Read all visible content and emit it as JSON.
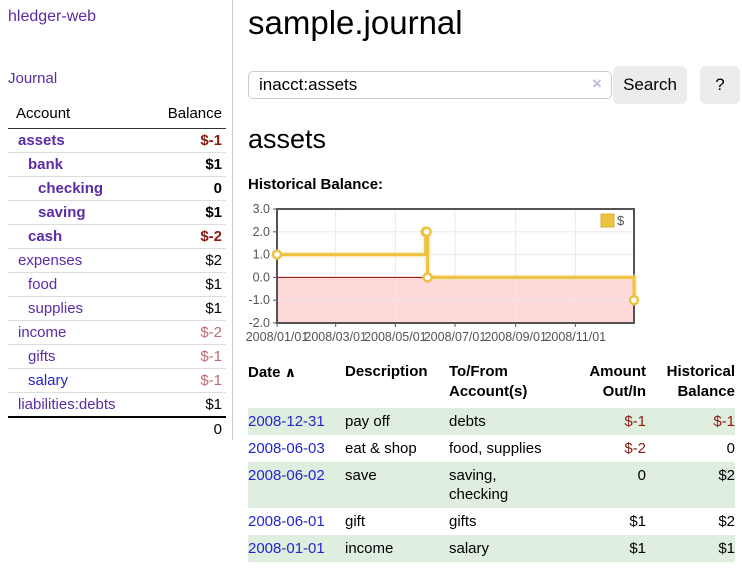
{
  "app": {
    "brand": "hledger-web",
    "nav_journal": "Journal"
  },
  "sidebar": {
    "accounts_header": {
      "account": "Account",
      "balance": "Balance"
    },
    "accounts": [
      {
        "name": "assets",
        "balance": "$-1",
        "indent": 0,
        "bold": true,
        "neg": "strong"
      },
      {
        "name": "bank",
        "balance": "$1",
        "indent": 1,
        "bold": true,
        "neg": "none"
      },
      {
        "name": "checking",
        "balance": "0",
        "indent": 2,
        "bold": true,
        "neg": "none"
      },
      {
        "name": "saving",
        "balance": "$1",
        "indent": 2,
        "bold": true,
        "neg": "none"
      },
      {
        "name": "cash",
        "balance": "$-2",
        "indent": 1,
        "bold": true,
        "neg": "strong"
      },
      {
        "name": "expenses",
        "balance": "$2",
        "indent": 0,
        "bold": false,
        "neg": "none"
      },
      {
        "name": "food",
        "balance": "$1",
        "indent": 1,
        "bold": false,
        "neg": "none"
      },
      {
        "name": "supplies",
        "balance": "$1",
        "indent": 1,
        "bold": false,
        "neg": "none"
      },
      {
        "name": "income",
        "balance": "$-2",
        "indent": 0,
        "bold": false,
        "neg": "soft"
      },
      {
        "name": "gifts",
        "balance": "$-1",
        "indent": 1,
        "bold": false,
        "neg": "soft"
      },
      {
        "name": "salary",
        "balance": "$-1",
        "indent": 1,
        "bold": false,
        "neg": "soft",
        "link": "blue"
      },
      {
        "name": "liabilities:debts",
        "balance": "$1",
        "indent": 0,
        "bold": false,
        "neg": "none"
      }
    ],
    "total": "0"
  },
  "header": {
    "title": "sample.journal"
  },
  "search": {
    "query": "inacct:assets",
    "clear_icon": "×",
    "button": "Search",
    "help_button": "?"
  },
  "account_page": {
    "heading": "assets",
    "chart_title": "Historical Balance:"
  },
  "chart_data": {
    "type": "line",
    "step": true,
    "title": "Historical Balance:",
    "x": [
      "2008-01-01",
      "2008-06-01",
      "2008-06-02",
      "2008-06-03",
      "2008-12-31"
    ],
    "series": [
      {
        "name": "$",
        "color": "#edc240",
        "values": [
          1,
          2,
          2,
          0,
          -1
        ]
      }
    ],
    "xlim": [
      "2008-01-01",
      "2008-12-31"
    ],
    "ylim": [
      -2,
      3
    ],
    "yticks": [
      3,
      2,
      1,
      0,
      -1,
      -2
    ],
    "xticks": [
      {
        "date": "2008-01-01",
        "label": "2008/01/01"
      },
      {
        "date": "2008-03-01",
        "label": "2008/03/01"
      },
      {
        "date": "2008-05-01",
        "label": "2008/05/01"
      },
      {
        "date": "2008-07-01",
        "label": "2008/07/01"
      },
      {
        "date": "2008-09-01",
        "label": "2008/09/01"
      },
      {
        "date": "2008-11-01",
        "label": "2008/11/01"
      }
    ],
    "legend": {
      "label": "$",
      "position": "top-right"
    },
    "grid": true,
    "grid_color": "#e8e8e8",
    "axis_color": "#545454",
    "negative_region_color": "#ffd9d9",
    "zero_line_color": "#8b0000"
  },
  "register": {
    "columns": [
      "Date",
      "Description",
      "To/From Account(s)",
      "Amount Out/In",
      "Historical Balance"
    ],
    "sort_icon": "∧",
    "rows": [
      {
        "date": "2008-12-31",
        "description": "pay off",
        "accounts": "debts",
        "amount": "$-1",
        "balance": "$-1",
        "amount_neg": true,
        "balance_neg": true,
        "shaded": true
      },
      {
        "date": "2008-06-03",
        "description": "eat & shop",
        "accounts": "food, supplies",
        "amount": "$-2",
        "balance": "0",
        "amount_neg": true,
        "balance_neg": false,
        "shaded": false
      },
      {
        "date": "2008-06-02",
        "description": "save",
        "accounts": "saving, checking",
        "amount": "0",
        "balance": "$2",
        "amount_neg": false,
        "balance_neg": false,
        "shaded": true
      },
      {
        "date": "2008-06-01",
        "description": "gift",
        "accounts": "gifts",
        "amount": "$1",
        "balance": "$2",
        "amount_neg": false,
        "balance_neg": false,
        "shaded": false
      },
      {
        "date": "2008-01-01",
        "description": "income",
        "accounts": "salary",
        "amount": "$1",
        "balance": "$1",
        "amount_neg": false,
        "balance_neg": false,
        "shaded": true
      }
    ]
  }
}
